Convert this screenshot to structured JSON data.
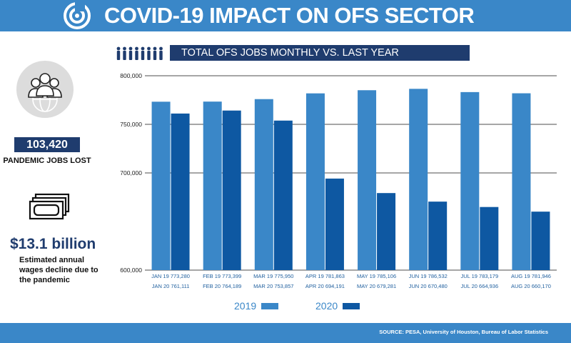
{
  "header": {
    "title": "COVID-19 IMPACT ON OFS SECTOR",
    "logo_icon": "logo-icon"
  },
  "subtitle": "TOTAL OFS JOBS MONTHLY VS. LAST YEAR",
  "stats": {
    "jobs_lost_value": "103,420",
    "jobs_lost_label": "PANDEMIC JOBS LOST",
    "wages_value": "$13.1 billion",
    "wages_label": "Estimated annual wages decline due to the pandemic"
  },
  "footer": {
    "source": "SOURCE: PESA, University of Houston, Bureau of Labor Statistics"
  },
  "colors": {
    "header_blue": "#3a87c8",
    "navy": "#1f3c6e",
    "bar_2019": "#3a87c8",
    "bar_2020": "#0e58a2"
  },
  "chart_data": {
    "type": "bar",
    "title": "TOTAL OFS JOBS MONTHLY VS. LAST YEAR",
    "ylim": [
      600000,
      800000
    ],
    "yticks": [
      "600,000",
      "700,000",
      "750,000",
      "800,000"
    ],
    "ytick_values": [
      600000,
      700000,
      750000,
      800000
    ],
    "grid": true,
    "legend_position": "bottom-center",
    "categories": [
      "JAN",
      "FEB",
      "MAR",
      "APR",
      "MAY",
      "JUN",
      "JUL",
      "AUG"
    ],
    "series": [
      {
        "name": "2019",
        "values": [
          773280,
          773399,
          775950,
          781863,
          785106,
          786532,
          783179,
          781946
        ],
        "labels": [
          "JAN 19  773,280",
          "FEB 19  773,399",
          "MAR 19  775,950",
          "APR 19  781,863",
          "MAY 19  785,106",
          "JUN 19  786,532",
          "JUL 19  783,179",
          "AUG 19  781,946"
        ]
      },
      {
        "name": "2020",
        "values": [
          761111,
          764189,
          753857,
          694191,
          679281,
          670480,
          664936,
          660170
        ],
        "labels": [
          "JAN 20  761,111",
          "FEB 20  764,189",
          "MAR 20  753,857",
          "APR 20  694,191",
          "MAY 20  679,281",
          "JUN 20  670,480",
          "JUL 20  664,936",
          "AUG 20  660,170"
        ]
      }
    ]
  }
}
